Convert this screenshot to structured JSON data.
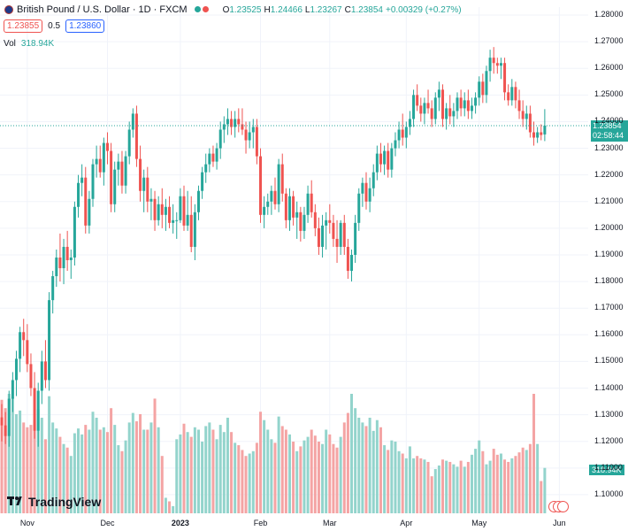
{
  "header": {
    "title": "British Pound / U.S. Dollar · 1D · FXCM",
    "ohlc_open_label": "O",
    "ohlc_open": "1.23525",
    "ohlc_high_label": "H",
    "ohlc_high": "1.24466",
    "ohlc_low_label": "L",
    "ohlc_low": "1.23267",
    "ohlc_close_label": "C",
    "ohlc_close": "1.23854",
    "change": "+0.00329 (+0.27%)",
    "sell_price": "1.23855",
    "spread": "0.5",
    "buy_price": "1.23860",
    "volume_label": "Vol",
    "volume_value": "318.94K"
  },
  "price_tag": {
    "price": "1.23854",
    "countdown": "02:58:44"
  },
  "volume_tag": "318.94K",
  "logo_text": "TradingView",
  "colors": {
    "up": "#26a69a",
    "down": "#ef5350",
    "up_volume": "#93d4cc",
    "down_volume": "#f4a4a4",
    "grid": "#f0f3fa"
  },
  "chart_data": {
    "type": "candlestick",
    "ylim": [
      1.093,
      1.283
    ],
    "y_ticks": [
      "1.28000",
      "1.27000",
      "1.26000",
      "1.25000",
      "1.24000",
      "1.23000",
      "1.22000",
      "1.21000",
      "1.20000",
      "1.19000",
      "1.18000",
      "1.17000",
      "1.16000",
      "1.15000",
      "1.14000",
      "1.13000",
      "1.12000",
      "1.11000",
      "1.10000"
    ],
    "x_ticks": [
      {
        "label": "Nov",
        "index": 7,
        "bold": false
      },
      {
        "label": "Dec",
        "index": 29,
        "bold": false
      },
      {
        "label": "2023",
        "index": 49,
        "bold": true
      },
      {
        "label": "Feb",
        "index": 71,
        "bold": false
      },
      {
        "label": "Mar",
        "index": 90,
        "bold": false
      },
      {
        "label": "Apr",
        "index": 111,
        "bold": false
      },
      {
        "label": "May",
        "index": 131,
        "bold": false
      },
      {
        "label": "Jun",
        "index": 153,
        "bold": false
      }
    ],
    "grid": true,
    "candles": [
      {
        "o": 1.129,
        "h": 1.134,
        "l": 1.12,
        "c": 1.126,
        "v": 0.95
      },
      {
        "o": 1.126,
        "h": 1.131,
        "l": 1.119,
        "c": 1.122,
        "v": 0.88
      },
      {
        "o": 1.122,
        "h": 1.139,
        "l": 1.118,
        "c": 1.136,
        "v": 1.0
      },
      {
        "o": 1.136,
        "h": 1.146,
        "l": 1.131,
        "c": 1.143,
        "v": 0.97
      },
      {
        "o": 1.143,
        "h": 1.154,
        "l": 1.137,
        "c": 1.151,
        "v": 0.83
      },
      {
        "o": 1.151,
        "h": 1.163,
        "l": 1.146,
        "c": 1.161,
        "v": 0.86
      },
      {
        "o": 1.161,
        "h": 1.166,
        "l": 1.152,
        "c": 1.158,
        "v": 0.76
      },
      {
        "o": 1.158,
        "h": 1.164,
        "l": 1.146,
        "c": 1.149,
        "v": 0.72
      },
      {
        "o": 1.149,
        "h": 1.153,
        "l": 1.137,
        "c": 1.14,
        "v": 0.74
      },
      {
        "o": 1.14,
        "h": 1.146,
        "l": 1.121,
        "c": 1.124,
        "v": 0.78
      },
      {
        "o": 1.124,
        "h": 1.142,
        "l": 1.118,
        "c": 1.139,
        "v": 0.87
      },
      {
        "o": 1.139,
        "h": 1.154,
        "l": 1.134,
        "c": 1.15,
        "v": 0.8
      },
      {
        "o": 1.15,
        "h": 1.158,
        "l": 1.14,
        "c": 1.143,
        "v": 0.62
      },
      {
        "o": 1.143,
        "h": 1.176,
        "l": 1.139,
        "c": 1.173,
        "v": 0.98
      },
      {
        "o": 1.173,
        "h": 1.184,
        "l": 1.168,
        "c": 1.182,
        "v": 0.76
      },
      {
        "o": 1.182,
        "h": 1.192,
        "l": 1.178,
        "c": 1.189,
        "v": 0.71
      },
      {
        "o": 1.189,
        "h": 1.198,
        "l": 1.18,
        "c": 1.185,
        "v": 0.64
      },
      {
        "o": 1.185,
        "h": 1.196,
        "l": 1.179,
        "c": 1.193,
        "v": 0.58
      },
      {
        "o": 1.193,
        "h": 1.199,
        "l": 1.184,
        "c": 1.188,
        "v": 0.55
      },
      {
        "o": 1.188,
        "h": 1.192,
        "l": 1.181,
        "c": 1.189,
        "v": 0.48
      },
      {
        "o": 1.189,
        "h": 1.21,
        "l": 1.186,
        "c": 1.208,
        "v": 0.67
      },
      {
        "o": 1.208,
        "h": 1.22,
        "l": 1.204,
        "c": 1.217,
        "v": 0.71
      },
      {
        "o": 1.217,
        "h": 1.224,
        "l": 1.212,
        "c": 1.219,
        "v": 0.66
      },
      {
        "o": 1.219,
        "h": 1.223,
        "l": 1.198,
        "c": 1.201,
        "v": 0.74
      },
      {
        "o": 1.201,
        "h": 1.214,
        "l": 1.198,
        "c": 1.211,
        "v": 0.7
      },
      {
        "o": 1.211,
        "h": 1.226,
        "l": 1.208,
        "c": 1.224,
        "v": 0.85
      },
      {
        "o": 1.224,
        "h": 1.231,
        "l": 1.219,
        "c": 1.226,
        "v": 0.8
      },
      {
        "o": 1.226,
        "h": 1.231,
        "l": 1.219,
        "c": 1.221,
        "v": 0.7
      },
      {
        "o": 1.221,
        "h": 1.234,
        "l": 1.216,
        "c": 1.232,
        "v": 0.72
      },
      {
        "o": 1.232,
        "h": 1.236,
        "l": 1.224,
        "c": 1.229,
        "v": 0.68
      },
      {
        "o": 1.229,
        "h": 1.232,
        "l": 1.206,
        "c": 1.209,
        "v": 0.88
      },
      {
        "o": 1.209,
        "h": 1.225,
        "l": 1.206,
        "c": 1.222,
        "v": 0.74
      },
      {
        "o": 1.222,
        "h": 1.228,
        "l": 1.216,
        "c": 1.225,
        "v": 0.57
      },
      {
        "o": 1.225,
        "h": 1.229,
        "l": 1.213,
        "c": 1.216,
        "v": 0.52
      },
      {
        "o": 1.216,
        "h": 1.229,
        "l": 1.213,
        "c": 1.227,
        "v": 0.61
      },
      {
        "o": 1.227,
        "h": 1.24,
        "l": 1.224,
        "c": 1.237,
        "v": 0.76
      },
      {
        "o": 1.237,
        "h": 1.245,
        "l": 1.234,
        "c": 1.243,
        "v": 0.84
      },
      {
        "o": 1.243,
        "h": 1.246,
        "l": 1.223,
        "c": 1.226,
        "v": 0.77
      },
      {
        "o": 1.226,
        "h": 1.231,
        "l": 1.21,
        "c": 1.214,
        "v": 0.83
      },
      {
        "o": 1.214,
        "h": 1.222,
        "l": 1.206,
        "c": 1.219,
        "v": 0.7
      },
      {
        "o": 1.219,
        "h": 1.223,
        "l": 1.206,
        "c": 1.21,
        "v": 0.7
      },
      {
        "o": 1.21,
        "h": 1.215,
        "l": 1.203,
        "c": 1.211,
        "v": 0.76
      },
      {
        "o": 1.211,
        "h": 1.214,
        "l": 1.199,
        "c": 1.203,
        "v": 0.96
      },
      {
        "o": 1.203,
        "h": 1.212,
        "l": 1.201,
        "c": 1.209,
        "v": 0.72
      },
      {
        "o": 1.209,
        "h": 1.215,
        "l": 1.2,
        "c": 1.205,
        "v": 0.48
      },
      {
        "o": 1.205,
        "h": 1.211,
        "l": 1.199,
        "c": 1.208,
        "v": 0.13
      },
      {
        "o": 1.208,
        "h": 1.212,
        "l": 1.2,
        "c": 1.202,
        "v": 0.1
      },
      {
        "o": 1.202,
        "h": 1.209,
        "l": 1.198,
        "c": 1.203,
        "v": 0.06
      },
      {
        "o": 1.203,
        "h": 1.206,
        "l": 1.196,
        "c": 1.203,
        "v": 0.62
      },
      {
        "o": 1.203,
        "h": 1.215,
        "l": 1.202,
        "c": 1.212,
        "v": 0.66
      },
      {
        "o": 1.212,
        "h": 1.216,
        "l": 1.199,
        "c": 1.201,
        "v": 0.75
      },
      {
        "o": 1.201,
        "h": 1.214,
        "l": 1.199,
        "c": 1.205,
        "v": 0.68
      },
      {
        "o": 1.205,
        "h": 1.212,
        "l": 1.191,
        "c": 1.193,
        "v": 0.64
      },
      {
        "o": 1.193,
        "h": 1.209,
        "l": 1.188,
        "c": 1.206,
        "v": 0.72
      },
      {
        "o": 1.206,
        "h": 1.216,
        "l": 1.203,
        "c": 1.214,
        "v": 0.7
      },
      {
        "o": 1.214,
        "h": 1.223,
        "l": 1.211,
        "c": 1.221,
        "v": 0.6
      },
      {
        "o": 1.221,
        "h": 1.228,
        "l": 1.217,
        "c": 1.224,
        "v": 0.73
      },
      {
        "o": 1.224,
        "h": 1.23,
        "l": 1.221,
        "c": 1.228,
        "v": 0.76
      },
      {
        "o": 1.228,
        "h": 1.231,
        "l": 1.223,
        "c": 1.225,
        "v": 0.7
      },
      {
        "o": 1.225,
        "h": 1.232,
        "l": 1.222,
        "c": 1.23,
        "v": 0.62
      },
      {
        "o": 1.23,
        "h": 1.24,
        "l": 1.226,
        "c": 1.237,
        "v": 0.74
      },
      {
        "o": 1.237,
        "h": 1.242,
        "l": 1.232,
        "c": 1.239,
        "v": 0.68
      },
      {
        "o": 1.239,
        "h": 1.245,
        "l": 1.235,
        "c": 1.241,
        "v": 0.8
      },
      {
        "o": 1.241,
        "h": 1.244,
        "l": 1.235,
        "c": 1.238,
        "v": 0.68
      },
      {
        "o": 1.238,
        "h": 1.244,
        "l": 1.234,
        "c": 1.241,
        "v": 0.59
      },
      {
        "o": 1.241,
        "h": 1.245,
        "l": 1.236,
        "c": 1.239,
        "v": 0.57
      },
      {
        "o": 1.239,
        "h": 1.245,
        "l": 1.235,
        "c": 1.237,
        "v": 0.53
      },
      {
        "o": 1.237,
        "h": 1.24,
        "l": 1.228,
        "c": 1.233,
        "v": 0.48
      },
      {
        "o": 1.233,
        "h": 1.24,
        "l": 1.23,
        "c": 1.236,
        "v": 0.5
      },
      {
        "o": 1.236,
        "h": 1.241,
        "l": 1.23,
        "c": 1.238,
        "v": 0.52
      },
      {
        "o": 1.238,
        "h": 1.241,
        "l": 1.224,
        "c": 1.227,
        "v": 0.59
      },
      {
        "o": 1.227,
        "h": 1.23,
        "l": 1.202,
        "c": 1.205,
        "v": 0.85
      },
      {
        "o": 1.205,
        "h": 1.212,
        "l": 1.2,
        "c": 1.208,
        "v": 0.78
      },
      {
        "o": 1.208,
        "h": 1.213,
        "l": 1.205,
        "c": 1.21,
        "v": 0.7
      },
      {
        "o": 1.21,
        "h": 1.216,
        "l": 1.205,
        "c": 1.214,
        "v": 0.62
      },
      {
        "o": 1.214,
        "h": 1.219,
        "l": 1.207,
        "c": 1.209,
        "v": 0.59
      },
      {
        "o": 1.209,
        "h": 1.226,
        "l": 1.206,
        "c": 1.224,
        "v": 0.81
      },
      {
        "o": 1.224,
        "h": 1.228,
        "l": 1.21,
        "c": 1.213,
        "v": 0.73
      },
      {
        "o": 1.213,
        "h": 1.215,
        "l": 1.2,
        "c": 1.203,
        "v": 0.7
      },
      {
        "o": 1.203,
        "h": 1.215,
        "l": 1.199,
        "c": 1.212,
        "v": 0.66
      },
      {
        "o": 1.212,
        "h": 1.214,
        "l": 1.201,
        "c": 1.204,
        "v": 0.6
      },
      {
        "o": 1.204,
        "h": 1.21,
        "l": 1.196,
        "c": 1.206,
        "v": 0.52
      },
      {
        "o": 1.206,
        "h": 1.208,
        "l": 1.195,
        "c": 1.199,
        "v": 0.56
      },
      {
        "o": 1.199,
        "h": 1.208,
        "l": 1.196,
        "c": 1.205,
        "v": 0.61
      },
      {
        "o": 1.205,
        "h": 1.216,
        "l": 1.202,
        "c": 1.213,
        "v": 0.64
      },
      {
        "o": 1.213,
        "h": 1.218,
        "l": 1.204,
        "c": 1.206,
        "v": 0.7
      },
      {
        "o": 1.206,
        "h": 1.209,
        "l": 1.197,
        "c": 1.2,
        "v": 0.65
      },
      {
        "o": 1.2,
        "h": 1.204,
        "l": 1.19,
        "c": 1.193,
        "v": 0.6
      },
      {
        "o": 1.193,
        "h": 1.205,
        "l": 1.189,
        "c": 1.201,
        "v": 0.58
      },
      {
        "o": 1.201,
        "h": 1.206,
        "l": 1.192,
        "c": 1.203,
        "v": 0.7
      },
      {
        "o": 1.203,
        "h": 1.209,
        "l": 1.198,
        "c": 1.202,
        "v": 0.66
      },
      {
        "o": 1.202,
        "h": 1.205,
        "l": 1.193,
        "c": 1.196,
        "v": 0.58
      },
      {
        "o": 1.196,
        "h": 1.203,
        "l": 1.187,
        "c": 1.193,
        "v": 0.55
      },
      {
        "o": 1.193,
        "h": 1.203,
        "l": 1.19,
        "c": 1.202,
        "v": 0.64
      },
      {
        "o": 1.202,
        "h": 1.205,
        "l": 1.19,
        "c": 1.193,
        "v": 0.76
      },
      {
        "o": 1.193,
        "h": 1.196,
        "l": 1.181,
        "c": 1.184,
        "v": 0.84
      },
      {
        "o": 1.184,
        "h": 1.192,
        "l": 1.18,
        "c": 1.19,
        "v": 1.0
      },
      {
        "o": 1.19,
        "h": 1.205,
        "l": 1.187,
        "c": 1.202,
        "v": 0.88
      },
      {
        "o": 1.202,
        "h": 1.215,
        "l": 1.199,
        "c": 1.213,
        "v": 0.8
      },
      {
        "o": 1.213,
        "h": 1.219,
        "l": 1.208,
        "c": 1.217,
        "v": 0.76
      },
      {
        "o": 1.217,
        "h": 1.221,
        "l": 1.207,
        "c": 1.21,
        "v": 0.73
      },
      {
        "o": 1.21,
        "h": 1.219,
        "l": 1.206,
        "c": 1.215,
        "v": 0.8
      },
      {
        "o": 1.215,
        "h": 1.224,
        "l": 1.212,
        "c": 1.221,
        "v": 0.69
      },
      {
        "o": 1.221,
        "h": 1.231,
        "l": 1.218,
        "c": 1.228,
        "v": 0.78
      },
      {
        "o": 1.228,
        "h": 1.232,
        "l": 1.221,
        "c": 1.224,
        "v": 0.72
      },
      {
        "o": 1.224,
        "h": 1.231,
        "l": 1.22,
        "c": 1.229,
        "v": 0.57
      },
      {
        "o": 1.229,
        "h": 1.232,
        "l": 1.219,
        "c": 1.222,
        "v": 0.53
      },
      {
        "o": 1.222,
        "h": 1.232,
        "l": 1.219,
        "c": 1.23,
        "v": 0.61
      },
      {
        "o": 1.23,
        "h": 1.236,
        "l": 1.227,
        "c": 1.233,
        "v": 0.6
      },
      {
        "o": 1.233,
        "h": 1.24,
        "l": 1.23,
        "c": 1.237,
        "v": 0.52
      },
      {
        "o": 1.237,
        "h": 1.243,
        "l": 1.231,
        "c": 1.234,
        "v": 0.5
      },
      {
        "o": 1.234,
        "h": 1.24,
        "l": 1.23,
        "c": 1.238,
        "v": 0.46
      },
      {
        "o": 1.238,
        "h": 1.244,
        "l": 1.235,
        "c": 1.241,
        "v": 0.56
      },
      {
        "o": 1.241,
        "h": 1.252,
        "l": 1.238,
        "c": 1.25,
        "v": 0.46
      },
      {
        "o": 1.25,
        "h": 1.254,
        "l": 1.244,
        "c": 1.246,
        "v": 0.48
      },
      {
        "o": 1.246,
        "h": 1.249,
        "l": 1.24,
        "c": 1.243,
        "v": 0.46
      },
      {
        "o": 1.243,
        "h": 1.249,
        "l": 1.239,
        "c": 1.247,
        "v": 0.45
      },
      {
        "o": 1.247,
        "h": 1.252,
        "l": 1.243,
        "c": 1.245,
        "v": 0.43
      },
      {
        "o": 1.245,
        "h": 1.248,
        "l": 1.238,
        "c": 1.241,
        "v": 0.31
      },
      {
        "o": 1.241,
        "h": 1.251,
        "l": 1.239,
        "c": 1.249,
        "v": 0.37
      },
      {
        "o": 1.249,
        "h": 1.255,
        "l": 1.244,
        "c": 1.252,
        "v": 0.4
      },
      {
        "o": 1.252,
        "h": 1.254,
        "l": 1.238,
        "c": 1.241,
        "v": 0.45
      },
      {
        "o": 1.241,
        "h": 1.247,
        "l": 1.237,
        "c": 1.245,
        "v": 0.44
      },
      {
        "o": 1.245,
        "h": 1.25,
        "l": 1.239,
        "c": 1.242,
        "v": 0.43
      },
      {
        "o": 1.242,
        "h": 1.247,
        "l": 1.238,
        "c": 1.244,
        "v": 0.41
      },
      {
        "o": 1.244,
        "h": 1.251,
        "l": 1.241,
        "c": 1.249,
        "v": 0.39
      },
      {
        "o": 1.249,
        "h": 1.252,
        "l": 1.242,
        "c": 1.245,
        "v": 0.44
      },
      {
        "o": 1.245,
        "h": 1.251,
        "l": 1.242,
        "c": 1.248,
        "v": 0.39
      },
      {
        "o": 1.248,
        "h": 1.252,
        "l": 1.241,
        "c": 1.244,
        "v": 0.43
      },
      {
        "o": 1.244,
        "h": 1.249,
        "l": 1.241,
        "c": 1.246,
        "v": 0.49
      },
      {
        "o": 1.246,
        "h": 1.251,
        "l": 1.243,
        "c": 1.249,
        "v": 0.54
      },
      {
        "o": 1.249,
        "h": 1.257,
        "l": 1.246,
        "c": 1.255,
        "v": 0.61
      },
      {
        "o": 1.255,
        "h": 1.258,
        "l": 1.247,
        "c": 1.25,
        "v": 0.52
      },
      {
        "o": 1.25,
        "h": 1.261,
        "l": 1.247,
        "c": 1.259,
        "v": 0.41
      },
      {
        "o": 1.259,
        "h": 1.267,
        "l": 1.255,
        "c": 1.264,
        "v": 0.44
      },
      {
        "o": 1.264,
        "h": 1.268,
        "l": 1.258,
        "c": 1.262,
        "v": 0.54
      },
      {
        "o": 1.262,
        "h": 1.264,
        "l": 1.258,
        "c": 1.261,
        "v": 0.49
      },
      {
        "o": 1.261,
        "h": 1.264,
        "l": 1.256,
        "c": 1.262,
        "v": 0.5
      },
      {
        "o": 1.262,
        "h": 1.264,
        "l": 1.248,
        "c": 1.251,
        "v": 0.45
      },
      {
        "o": 1.251,
        "h": 1.254,
        "l": 1.246,
        "c": 1.248,
        "v": 0.43
      },
      {
        "o": 1.248,
        "h": 1.256,
        "l": 1.246,
        "c": 1.253,
        "v": 0.46
      },
      {
        "o": 1.253,
        "h": 1.255,
        "l": 1.245,
        "c": 1.248,
        "v": 0.48
      },
      {
        "o": 1.248,
        "h": 1.252,
        "l": 1.241,
        "c": 1.244,
        "v": 0.51
      },
      {
        "o": 1.244,
        "h": 1.248,
        "l": 1.238,
        "c": 1.241,
        "v": 0.55
      },
      {
        "o": 1.241,
        "h": 1.246,
        "l": 1.237,
        "c": 1.243,
        "v": 0.53
      },
      {
        "o": 1.243,
        "h": 1.246,
        "l": 1.234,
        "c": 1.236,
        "v": 0.58
      },
      {
        "o": 1.236,
        "h": 1.24,
        "l": 1.231,
        "c": 1.234,
        "v": 1.0
      },
      {
        "o": 1.234,
        "h": 1.238,
        "l": 1.232,
        "c": 1.236,
        "v": 0.58
      },
      {
        "o": 1.236,
        "h": 1.239,
        "l": 1.233,
        "c": 1.235,
        "v": 0.27
      },
      {
        "o": 1.2352,
        "h": 1.2447,
        "l": 1.2327,
        "c": 1.2385,
        "v": 0.38
      }
    ]
  }
}
